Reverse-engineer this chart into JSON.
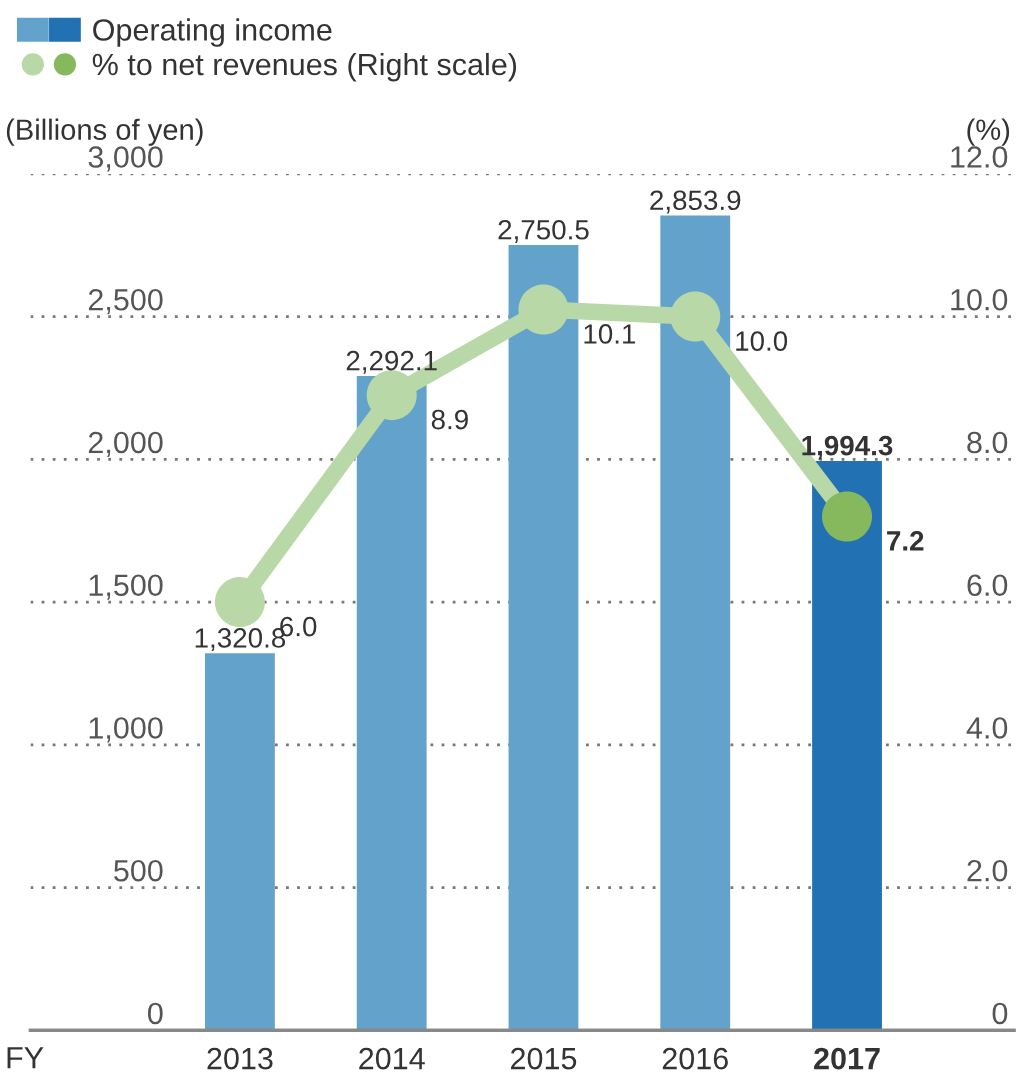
{
  "chart_data": {
    "type": "bar",
    "categories": [
      "2013",
      "2014",
      "2015",
      "2016",
      "2017"
    ],
    "xlabel": "FY",
    "ylabel": "(Billions of yen)",
    "y2label": "(%)",
    "series": [
      {
        "name": "Operating income",
        "values": [
          1320.8,
          2292.1,
          2750.5,
          2853.9,
          1994.3
        ],
        "value_labels": [
          "1,320.8",
          "2,292.1",
          "2,750.5",
          "2,853.9",
          "1,994.3"
        ],
        "colors": [
          "#62a2cb",
          "#62a2cb",
          "#62a2cb",
          "#62a2cb",
          "#2271b3"
        ]
      },
      {
        "name": "% to net revenues (Right scale)",
        "type": "line",
        "axis": "y2",
        "color": "#b8d8a8",
        "values": [
          6.0,
          8.9,
          10.1,
          10.0,
          7.2
        ],
        "value_labels": [
          "6.0",
          "8.9",
          "10.1",
          "10.0",
          "7.2"
        ],
        "colors": [
          "#b8d8a8",
          "#b8d8a8",
          "#b8d8a8",
          "#b8d8a8",
          "#86b95e"
        ]
      }
    ],
    "ylim": [
      0,
      3000
    ],
    "yticks": [
      0,
      {
        "value": 500,
        "label": "500"
      },
      {
        "value": 1000,
        "label": "1,000"
      },
      {
        "value": 1500,
        "label": "1,500"
      },
      {
        "value": 2000,
        "label": "2,000"
      },
      {
        "value": 2500,
        "label": "2,500"
      },
      {
        "value": 3000,
        "label": "3,000"
      }
    ],
    "y2lim": [
      0,
      12
    ],
    "y2ticks": [
      0,
      {
        "value": 2,
        "label": "2.0"
      },
      {
        "value": 4,
        "label": "4.0"
      },
      {
        "value": 6,
        "label": "6.0"
      },
      {
        "value": 8,
        "label": "8.0"
      },
      {
        "value": 10,
        "label": "10.0"
      },
      {
        "value": 12,
        "label": "12.0"
      }
    ],
    "grid": "y",
    "legend": "top left",
    "marker": "circle"
  }
}
